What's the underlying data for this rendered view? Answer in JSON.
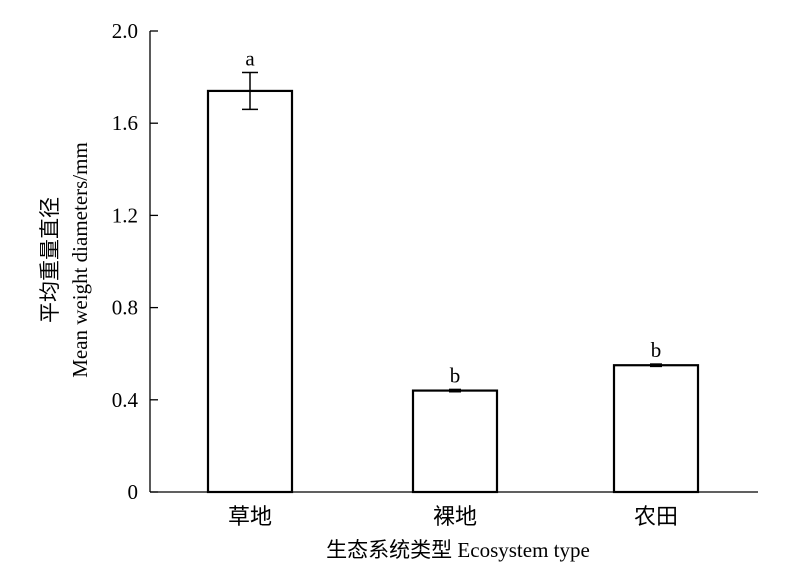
{
  "chart_data": {
    "type": "bar",
    "categories": [
      "草地",
      "裸地",
      "农田"
    ],
    "values": [
      1.74,
      0.44,
      0.55
    ],
    "error": [
      0.08,
      0.005,
      0.005
    ],
    "significance_labels": [
      "a",
      "b",
      "b"
    ],
    "xlabel": "生态系统类型 Ecosystem type",
    "ylabel_cn": "平均重量直径",
    "ylabel_en": "Mean weight diameters/mm",
    "ylim": [
      0,
      2.0
    ],
    "yticks": [
      0,
      0.4,
      0.8,
      1.2,
      1.6,
      2.0
    ],
    "ytick_labels": [
      "0",
      "0.4",
      "0.8",
      "1.2",
      "1.6",
      "2.0"
    ],
    "grid": false,
    "colors": {
      "bar_fill": "#ffffff",
      "bar_stroke": "#000000",
      "axis": "#000000"
    }
  }
}
